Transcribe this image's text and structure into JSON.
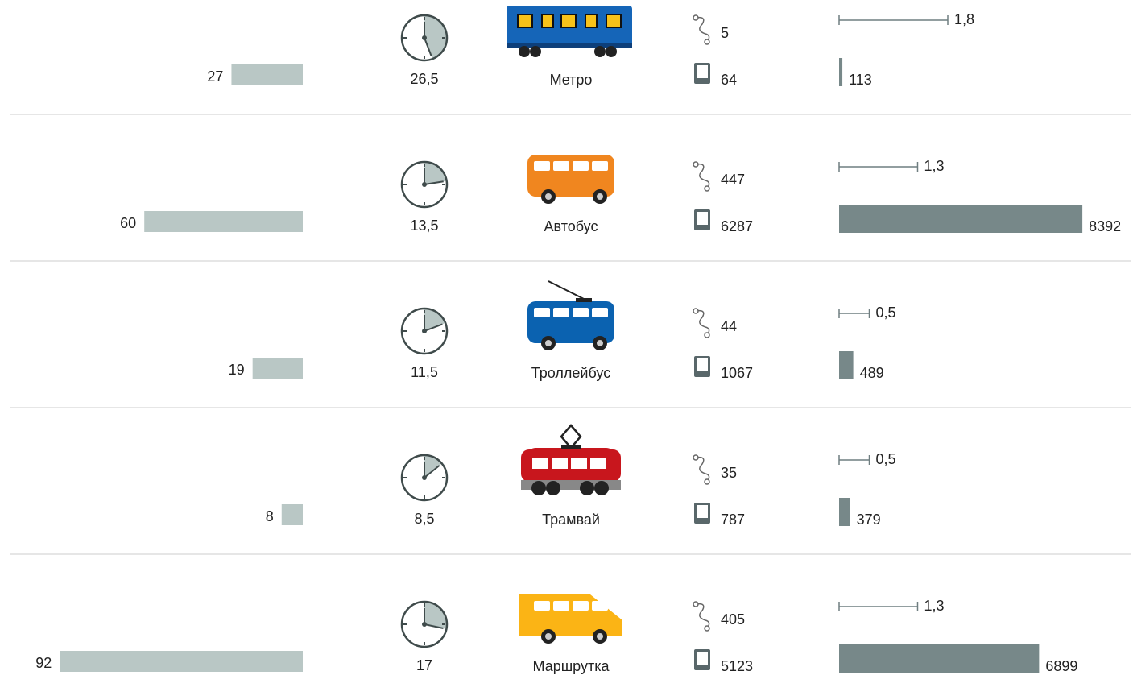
{
  "rows": [
    {
      "name": "Метро",
      "share": 27,
      "time": {
        "value": 26.5,
        "label": "26,5"
      },
      "routes": 5,
      "stops": 64,
      "distance": {
        "value": 1.8,
        "label": "1,8"
      },
      "count": 113
    },
    {
      "name": "Автобус",
      "share": 60,
      "time": {
        "value": 13.5,
        "label": "13,5"
      },
      "routes": 447,
      "stops": 6287,
      "distance": {
        "value": 1.3,
        "label": "1,3"
      },
      "count": 8392
    },
    {
      "name": "Троллейбус",
      "share": 19,
      "time": {
        "value": 11.5,
        "label": "11,5"
      },
      "routes": 44,
      "stops": 1067,
      "distance": {
        "value": 0.5,
        "label": "0,5"
      },
      "count": 489
    },
    {
      "name": "Трамвай",
      "share": 8,
      "time": {
        "value": 8.5,
        "label": "8,5"
      },
      "routes": 35,
      "stops": 787,
      "distance": {
        "value": 0.5,
        "label": "0,5"
      },
      "count": 379
    },
    {
      "name": "Маршрутка",
      "share": 92,
      "time": 17,
      "routes": 405,
      "stops": 5123,
      "distance": {
        "value": 1.3,
        "label": "1,3"
      },
      "count": 6899
    }
  ]
}
